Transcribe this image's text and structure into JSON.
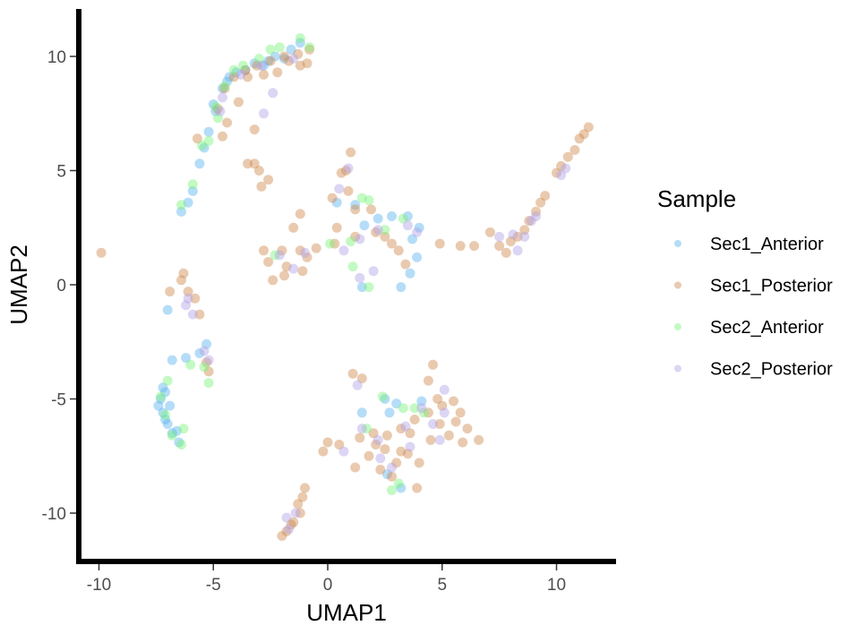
{
  "chart_data": {
    "type": "scatter",
    "title": "",
    "xlabel": "UMAP1",
    "ylabel": "UMAP2",
    "xlim": [
      -11,
      12.7
    ],
    "ylim": [
      -12.3,
      12
    ],
    "x_ticks": [
      -10,
      -5,
      0,
      5,
      10
    ],
    "y_ticks": [
      -10,
      -5,
      0,
      5,
      10
    ],
    "x_tick_labels": [
      "-10",
      "-5",
      "0",
      "5",
      "10"
    ],
    "y_tick_labels": [
      "-10",
      "-5",
      "0",
      "5",
      "10"
    ],
    "grid": false,
    "legend": {
      "title": "Sample",
      "placement": "right"
    },
    "series": [
      {
        "name": "Sec1_Anterior",
        "color": "#5BB4F0",
        "points": [
          [
            -6.4,
            3.2
          ],
          [
            -5.9,
            4.1
          ],
          [
            -5.6,
            5.3
          ],
          [
            -5.2,
            6.7
          ],
          [
            -4.9,
            7.6
          ],
          [
            -4.6,
            8.6
          ],
          [
            -4.0,
            9.3
          ],
          [
            -3.2,
            9.7
          ],
          [
            -2.3,
            10.0
          ],
          [
            -1.6,
            10.3
          ],
          [
            -5.0,
            7.9
          ],
          [
            -4.4,
            8.9
          ],
          [
            -3.6,
            9.4
          ],
          [
            -2.8,
            9.6
          ],
          [
            -1.9,
            9.9
          ],
          [
            -6.1,
            3.6
          ],
          [
            -5.4,
            6.0
          ],
          [
            -4.3,
            9.1
          ],
          [
            -2.6,
            9.8
          ],
          [
            -1.2,
            10.6
          ],
          [
            -7.2,
            -4.5
          ],
          [
            -7.3,
            -5.0
          ],
          [
            -7.2,
            -5.6
          ],
          [
            -7.0,
            -6.1
          ],
          [
            -6.8,
            -6.5
          ],
          [
            -6.5,
            -6.9
          ],
          [
            -7.1,
            -4.7
          ],
          [
            -6.9,
            -5.3
          ],
          [
            -7.4,
            -5.3
          ],
          [
            -6.6,
            -6.4
          ],
          [
            -7.0,
            -1.1
          ],
          [
            -6.2,
            -3.2
          ],
          [
            -5.3,
            -2.6
          ],
          [
            -5.6,
            -3.0
          ],
          [
            -6.8,
            -3.3
          ],
          [
            -7.1,
            -5.9
          ],
          [
            3.5,
            3.0
          ],
          [
            3.7,
            2.0
          ],
          [
            3.9,
            1.2
          ],
          [
            3.6,
            0.5
          ],
          [
            3.2,
            -0.1
          ],
          [
            2.2,
            2.9
          ],
          [
            2.8,
            3.0
          ],
          [
            1.5,
            -0.1
          ],
          [
            1.6,
            2.6
          ],
          [
            1.2,
            3.5
          ],
          [
            4.0,
            2.5
          ],
          [
            0.4,
            3.6
          ],
          [
            1.5,
            -5.6
          ],
          [
            2.5,
            -5.0
          ],
          [
            3.0,
            -5.2
          ],
          [
            4.1,
            -5.1
          ],
          [
            2.7,
            -5.6
          ],
          [
            3.2,
            -8.9
          ],
          [
            2.6,
            -8.3
          ]
        ]
      },
      {
        "name": "Sec1_Posterior",
        "color": "#CE8A4E",
        "points": [
          [
            -4.5,
            8.6
          ],
          [
            -4.1,
            9.1
          ],
          [
            -3.6,
            9.4
          ],
          [
            -3.1,
            9.6
          ],
          [
            -2.5,
            9.8
          ],
          [
            -1.9,
            10.0
          ],
          [
            -1.3,
            10.1
          ],
          [
            -0.9,
            9.7
          ],
          [
            -4.8,
            7.7
          ],
          [
            -4.4,
            7.1
          ],
          [
            -4.6,
            6.5
          ],
          [
            -3.5,
            9.1
          ],
          [
            -2.2,
            9.3
          ],
          [
            -1.7,
            9.8
          ],
          [
            -1.2,
            9.6
          ],
          [
            -5.7,
            6.4
          ],
          [
            -3.2,
            6.8
          ],
          [
            -3.9,
            8.0
          ],
          [
            -2.8,
            9.2
          ],
          [
            -0.8,
            10.3
          ],
          [
            -3.5,
            5.3
          ],
          [
            -3.0,
            5.0
          ],
          [
            -2.6,
            4.6
          ],
          [
            -3.2,
            5.3
          ],
          [
            -2.9,
            4.3
          ],
          [
            -9.9,
            1.4
          ],
          [
            -6.4,
            0.2
          ],
          [
            -6.1,
            -0.3
          ],
          [
            -5.8,
            -0.6
          ],
          [
            -6.9,
            -0.3
          ],
          [
            -5.6,
            -1.3
          ],
          [
            -6.3,
            0.5
          ],
          [
            -5.3,
            -3.4
          ],
          [
            -5.2,
            -3.8
          ],
          [
            -2.8,
            1.5
          ],
          [
            -2.0,
            1.5
          ],
          [
            -1.2,
            1.5
          ],
          [
            -0.5,
            1.6
          ],
          [
            0.3,
            1.8
          ],
          [
            1.2,
            2.1
          ],
          [
            2.1,
            2.3
          ],
          [
            2.5,
            2.1
          ],
          [
            -1.8,
            0.8
          ],
          [
            -2.4,
            0.2
          ],
          [
            -1.1,
            0.6
          ],
          [
            -1.9,
            0.4
          ],
          [
            -0.9,
            1.2
          ],
          [
            -2.6,
            1.0
          ],
          [
            2.8,
            1.8
          ],
          [
            0.4,
            2.5
          ],
          [
            1.2,
            3.3
          ],
          [
            0.9,
            4.1
          ],
          [
            0.6,
            4.9
          ],
          [
            1.0,
            5.8
          ],
          [
            0.8,
            5.0
          ],
          [
            -1.2,
            3.1
          ],
          [
            0.2,
            3.8
          ],
          [
            -1.5,
            2.5
          ],
          [
            1.9,
            3.3
          ],
          [
            3.1,
            1.5
          ],
          [
            3.4,
            0.9
          ],
          [
            8.0,
            1.9
          ],
          [
            8.6,
            2.4
          ],
          [
            9.1,
            3.2
          ],
          [
            9.5,
            3.9
          ],
          [
            10.0,
            4.9
          ],
          [
            10.5,
            5.6
          ],
          [
            11.0,
            6.4
          ],
          [
            11.4,
            6.9
          ],
          [
            7.5,
            1.7
          ],
          [
            8.3,
            2.1
          ],
          [
            9.3,
            3.6
          ],
          [
            10.2,
            5.2
          ],
          [
            10.8,
            5.9
          ],
          [
            11.2,
            6.6
          ],
          [
            8.8,
            2.8
          ],
          [
            7.1,
            2.3
          ],
          [
            6.4,
            1.7
          ],
          [
            5.8,
            1.7
          ],
          [
            4.9,
            1.8
          ],
          [
            7.8,
            1.4
          ],
          [
            -1.2,
            -10.0
          ],
          [
            -1.3,
            -9.6
          ],
          [
            -1.5,
            -10.4
          ],
          [
            -1.8,
            -10.8
          ],
          [
            -2.0,
            -11.0
          ],
          [
            -1.0,
            -8.9
          ],
          [
            -1.1,
            -9.3
          ],
          [
            -1.6,
            -10.5
          ],
          [
            1.4,
            -6.7
          ],
          [
            2.0,
            -6.5
          ],
          [
            2.6,
            -6.6
          ],
          [
            3.2,
            -6.3
          ],
          [
            3.8,
            -5.9
          ],
          [
            4.4,
            -5.6
          ],
          [
            5.0,
            -5.3
          ],
          [
            5.5,
            -5.1
          ],
          [
            5.8,
            -5.6
          ],
          [
            6.1,
            -6.3
          ],
          [
            6.6,
            -6.8
          ],
          [
            1.8,
            -7.5
          ],
          [
            2.3,
            -8.1
          ],
          [
            2.8,
            -8.4
          ],
          [
            3.0,
            -7.8
          ],
          [
            3.5,
            -7.4
          ],
          [
            4.0,
            -7.8
          ],
          [
            4.5,
            -6.8
          ],
          [
            4.9,
            -6.1
          ],
          [
            5.3,
            -6.6
          ],
          [
            0.5,
            -7.0
          ],
          [
            -0.2,
            -7.3
          ],
          [
            4.6,
            -3.5
          ],
          [
            4.4,
            -4.2
          ],
          [
            3.9,
            -8.9
          ],
          [
            3.2,
            -7.3
          ],
          [
            2.1,
            -7.0
          ],
          [
            1.5,
            -4.1
          ],
          [
            1.1,
            -3.9
          ],
          [
            5.6,
            -6.0
          ],
          [
            1.2,
            -8.0
          ],
          [
            2.5,
            -7.2
          ],
          [
            3.6,
            -6.5
          ],
          [
            4.8,
            -5.0
          ],
          [
            0.0,
            -6.9
          ],
          [
            5.9,
            -6.9
          ]
        ]
      },
      {
        "name": "Sec2_Anterior",
        "color": "#7AF37A",
        "points": [
          [
            -5.9,
            4.4
          ],
          [
            -5.2,
            6.3
          ],
          [
            -4.8,
            7.3
          ],
          [
            -4.5,
            8.7
          ],
          [
            -4.1,
            9.4
          ],
          [
            -3.0,
            9.9
          ],
          [
            -2.1,
            10.4
          ],
          [
            -1.2,
            10.8
          ],
          [
            -0.8,
            10.4
          ],
          [
            -3.7,
            9.6
          ],
          [
            -5.5,
            6.1
          ],
          [
            -2.5,
            10.3
          ],
          [
            -6.4,
            3.5
          ],
          [
            -4.9,
            7.8
          ],
          [
            -7.3,
            -4.9
          ],
          [
            -7.1,
            -5.7
          ],
          [
            -6.8,
            -6.6
          ],
          [
            -6.4,
            -7.0
          ],
          [
            -7.0,
            -4.2
          ],
          [
            -6.3,
            -6.3
          ],
          [
            -5.4,
            -3.6
          ],
          [
            -5.2,
            -4.3
          ],
          [
            -6.0,
            -3.5
          ],
          [
            0.1,
            1.8
          ],
          [
            1.0,
            1.9
          ],
          [
            2.5,
            2.4
          ],
          [
            1.1,
            0.8
          ],
          [
            1.8,
            -0.1
          ],
          [
            3.3,
            2.9
          ],
          [
            1.5,
            3.8
          ],
          [
            1.8,
            3.7
          ],
          [
            -2.3,
            1.3
          ],
          [
            2.8,
            -9.0
          ],
          [
            3.1,
            -8.7
          ],
          [
            2.4,
            -4.9
          ],
          [
            3.3,
            -5.4
          ],
          [
            3.8,
            -5.4
          ],
          [
            4.2,
            -5.6
          ],
          [
            1.7,
            -6.3
          ]
        ]
      },
      {
        "name": "Sec2_Posterior",
        "color": "#B1A1E6",
        "points": [
          [
            -3.8,
            9.2
          ],
          [
            -2.9,
            9.6
          ],
          [
            -2.4,
            8.4
          ],
          [
            -1.5,
            9.9
          ],
          [
            -4.6,
            8.2
          ],
          [
            -4.7,
            7.6
          ],
          [
            -2.8,
            7.5
          ],
          [
            -6.1,
            -0.6
          ],
          [
            -6.2,
            -0.9
          ],
          [
            -5.9,
            -1.3
          ],
          [
            -5.4,
            -2.9
          ],
          [
            -5.2,
            -3.3
          ],
          [
            0.5,
            4.2
          ],
          [
            0.9,
            5.1
          ],
          [
            1.4,
            2.0
          ],
          [
            2.2,
            2.4
          ],
          [
            -1.0,
            1.4
          ],
          [
            2.0,
            0.6
          ],
          [
            1.4,
            0.3
          ],
          [
            0.7,
            1.5
          ],
          [
            -2.1,
            1.3
          ],
          [
            -1.5,
            0.7
          ],
          [
            3.9,
            2.3
          ],
          [
            3.5,
            2.6
          ],
          [
            8.6,
            2.1
          ],
          [
            9.1,
            3.0
          ],
          [
            8.1,
            2.2
          ],
          [
            10.2,
            4.8
          ],
          [
            7.5,
            2.1
          ],
          [
            8.9,
            2.8
          ],
          [
            10.4,
            5.1
          ],
          [
            8.3,
            1.5
          ],
          [
            -1.8,
            -10.2
          ],
          [
            -1.4,
            -10.0
          ],
          [
            -1.7,
            -10.7
          ],
          [
            2.3,
            -7.6
          ],
          [
            3.4,
            -6.2
          ],
          [
            4.6,
            -6.1
          ],
          [
            1.5,
            -6.3
          ],
          [
            3.6,
            -7.1
          ],
          [
            5.1,
            -5.6
          ],
          [
            2.8,
            -8.0
          ],
          [
            4.9,
            -6.8
          ],
          [
            4.1,
            -5.4
          ],
          [
            0.7,
            -7.3
          ],
          [
            1.3,
            -4.4
          ],
          [
            5.1,
            -4.6
          ],
          [
            2.2,
            -6.8
          ]
        ]
      }
    ]
  }
}
